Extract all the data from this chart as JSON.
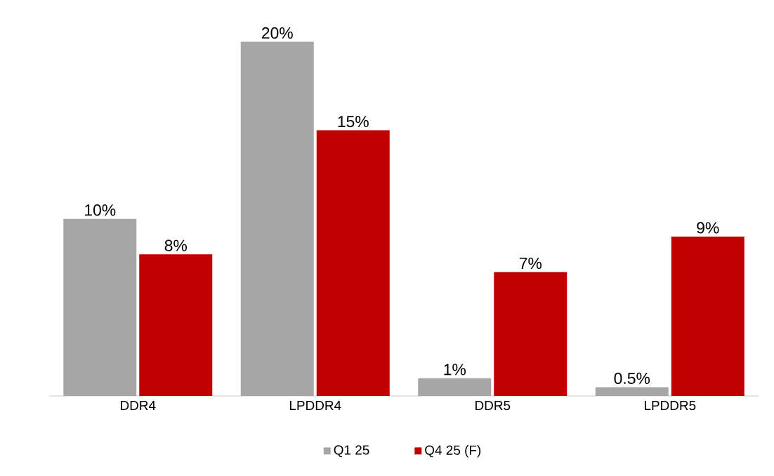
{
  "chart_data": {
    "type": "bar",
    "categories": [
      "DDR4",
      "LPDDR4",
      "DDR5",
      "LPDDR5"
    ],
    "series": [
      {
        "name": "Q1 25",
        "color": "#a6a6a6",
        "values": [
          10,
          20,
          1,
          0.5
        ],
        "value_labels": [
          "10%",
          "20%",
          "1%",
          "0.5%"
        ]
      },
      {
        "name": "Q4 25 (F)",
        "color": "#c00000",
        "values": [
          8,
          15,
          7,
          9
        ],
        "value_labels": [
          "8%",
          "15%",
          "7%",
          "9%"
        ]
      }
    ],
    "legend": "bottom",
    "grid": false
  }
}
